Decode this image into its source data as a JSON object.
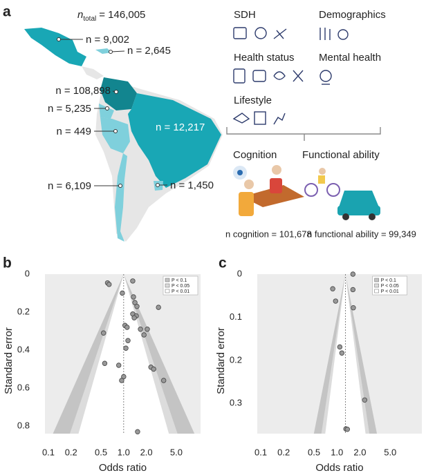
{
  "panel_labels": [
    "a",
    "b",
    "c"
  ],
  "map": {
    "total": {
      "n": "n",
      "sub": "total",
      "text": "= 146,005"
    },
    "countries": [
      "n = 9,002",
      "n = 2,645",
      "n = 108,898",
      "n = 5,235",
      "n = 449",
      "n = 12,217",
      "n = 6,109",
      "n = 1,450"
    ]
  },
  "domains": [
    "SDH",
    "Demographics",
    "Health status",
    "Mental health",
    "Lifestyle"
  ],
  "outcomes": {
    "cognition": "Cognition",
    "functional": "Functional ability",
    "n_cognition": "n cognition = 101,678",
    "n_functional": "n functional ability = 99,349"
  },
  "chart_data": [
    {
      "type": "funnel",
      "xlabel": "Odds ratio",
      "ylabel": "Standard error",
      "xscale": "log",
      "xlim": [
        0.09,
        10.5
      ],
      "ylim": [
        0,
        0.84
      ],
      "xticks": [
        0.1,
        0.2,
        0.5,
        {
          "value": 1,
          "label": "1.0"
        },
        {
          "value": 2,
          "label": "2.0"
        },
        {
          "value": 5,
          "label": "5.0"
        }
      ],
      "yticks": [
        0,
        0.2,
        0.4,
        0.6,
        0.8
      ],
      "reference_line": 1.0,
      "color": "#999999",
      "legend": [
        "P < 0.1",
        "P < 0.05",
        "P < 0.01"
      ],
      "legend_colors": [
        "#c4c4c4",
        "#dcdcdc",
        "#ffffff"
      ],
      "x": [
        0.61,
        0.64,
        0.96,
        1.32,
        1.35,
        1.41,
        1.5,
        2.9,
        1.32,
        1.47,
        1.38,
        1.04,
        1.11,
        2.06,
        1.67,
        1.86,
        0.54,
        1.14,
        1.07,
        2.3,
        2.5,
        0.56,
        0.86,
        3.4,
        1.0,
        0.94,
        1.53
      ],
      "values": [
        0.046,
        0.054,
        0.1,
        0.036,
        0.12,
        0.15,
        0.17,
        0.175,
        0.21,
        0.22,
        0.23,
        0.27,
        0.28,
        0.29,
        0.29,
        0.32,
        0.31,
        0.35,
        0.39,
        0.49,
        0.5,
        0.47,
        0.48,
        0.56,
        0.54,
        0.56,
        0.83
      ]
    },
    {
      "type": "funnel",
      "xlabel": "Odds ratio",
      "ylabel": "Standard error",
      "xscale": "log",
      "xlim": [
        0.09,
        13
      ],
      "ylim": [
        0,
        0.37
      ],
      "xticks": [
        0.1,
        0.2,
        0.5,
        {
          "value": 1,
          "label": "1.0"
        },
        {
          "value": 2,
          "label": "2.0"
        },
        {
          "value": 5,
          "label": "5.0"
        }
      ],
      "yticks": [
        0,
        0.1,
        0.2,
        0.3
      ],
      "reference_line": 1.29,
      "color": "#999999",
      "legend": [
        "P < 0.1",
        "P < 0.05",
        "P < 0.01"
      ],
      "legend_colors": [
        "#c4c4c4",
        "#dcdcdc",
        "#ffffff"
      ],
      "x": [
        1.62,
        0.88,
        1.62,
        0.96,
        1.64,
        1.09,
        1.16,
        2.31,
        1.31,
        1.37
      ],
      "values": [
        0,
        0.034,
        0.036,
        0.0625,
        0.078,
        0.169,
        0.183,
        0.292,
        0.359,
        0.36
      ]
    }
  ]
}
